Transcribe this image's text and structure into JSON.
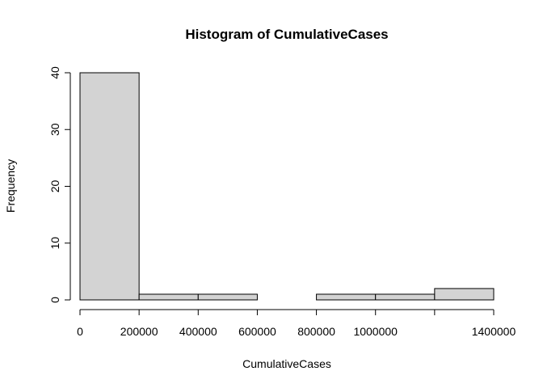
{
  "chart_data": {
    "type": "bar",
    "title": "Histogram of CumulativeCases",
    "xlabel": "CumulativeCases",
    "ylabel": "Frequency",
    "bar_color": "#d3d3d3",
    "border_color": "#000000",
    "bins": [
      {
        "start": 0,
        "end": 200000,
        "count": 40
      },
      {
        "start": 200000,
        "end": 400000,
        "count": 1
      },
      {
        "start": 400000,
        "end": 600000,
        "count": 1
      },
      {
        "start": 600000,
        "end": 800000,
        "count": 0
      },
      {
        "start": 800000,
        "end": 1000000,
        "count": 1
      },
      {
        "start": 1000000,
        "end": 1200000,
        "count": 1
      },
      {
        "start": 1200000,
        "end": 1400000,
        "count": 2
      }
    ],
    "xlim": [
      0,
      1400000
    ],
    "ylim": [
      0,
      40
    ],
    "x_ticks": [
      0,
      200000,
      400000,
      600000,
      800000,
      1000000,
      1200000,
      1400000
    ],
    "x_tick_labels": [
      "0",
      "200000",
      "400000",
      "600000",
      "800000",
      "1000000",
      "",
      "1400000"
    ],
    "y_ticks": [
      0,
      10,
      20,
      30,
      40
    ],
    "y_tick_labels": [
      "0",
      "10",
      "20",
      "30",
      "40"
    ],
    "grid": false,
    "legend": "none"
  }
}
